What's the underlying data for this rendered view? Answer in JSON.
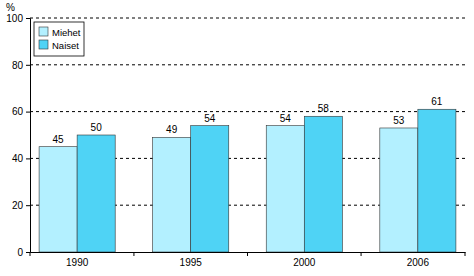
{
  "chart_data": {
    "type": "bar",
    "y_label": "%",
    "categories": [
      "1990",
      "1995",
      "2000",
      "2006"
    ],
    "series": [
      {
        "name": "Miehet",
        "color": "#b3f0ff",
        "values": [
          45,
          49,
          54,
          53
        ]
      },
      {
        "name": "Naiset",
        "color": "#4fd3f5",
        "values": [
          50,
          54,
          58,
          61
        ]
      }
    ],
    "ylim": [
      0,
      100
    ],
    "yticks": [
      0,
      20,
      40,
      60,
      80,
      100
    ],
    "grid": true,
    "legend": "upper left",
    "data_labels": true
  }
}
